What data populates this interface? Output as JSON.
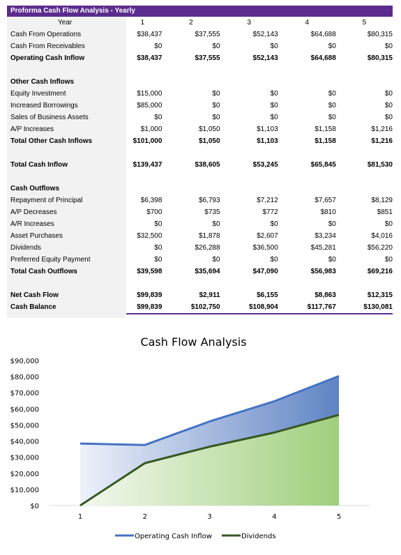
{
  "sheet": {
    "title": "Proforma Cash Flow Analysis - Yearly",
    "header": {
      "label": "Year",
      "cols": [
        "1",
        "2",
        "3",
        "4",
        "5"
      ]
    },
    "rows": [
      {
        "type": "data",
        "label": "Cash From Operations",
        "values": [
          "$38,437",
          "$37,555",
          "$52,143",
          "$64,688",
          "$80,315"
        ]
      },
      {
        "type": "data",
        "label": "Cash From Receivables",
        "values": [
          "$0",
          "$0",
          "$0",
          "$0",
          "$0"
        ]
      },
      {
        "type": "bold",
        "label": "Operating Cash Inflow",
        "values": [
          "$38,437",
          "$37,555",
          "$52,143",
          "$64,688",
          "$80,315"
        ]
      },
      {
        "type": "blank"
      },
      {
        "type": "section",
        "label": "Other Cash Inflows"
      },
      {
        "type": "data",
        "label": "Equity Investment",
        "values": [
          "$15,000",
          "$0",
          "$0",
          "$0",
          "$0"
        ]
      },
      {
        "type": "data",
        "label": "Increased Borrowings",
        "values": [
          "$85,000",
          "$0",
          "$0",
          "$0",
          "$0"
        ]
      },
      {
        "type": "data",
        "label": "Sales of Business Assets",
        "values": [
          "$0",
          "$0",
          "$0",
          "$0",
          "$0"
        ]
      },
      {
        "type": "data",
        "label": "A/P Increases",
        "values": [
          "$1,000",
          "$1,050",
          "$1,103",
          "$1,158",
          "$1,216"
        ]
      },
      {
        "type": "bold",
        "label": "Total Other Cash Inflows",
        "values": [
          "$101,000",
          "$1,050",
          "$1,103",
          "$1,158",
          "$1,216"
        ]
      },
      {
        "type": "blank"
      },
      {
        "type": "bold",
        "label": "Total Cash Inflow",
        "values": [
          "$139,437",
          "$38,605",
          "$53,245",
          "$65,845",
          "$81,530"
        ]
      },
      {
        "type": "blank"
      },
      {
        "type": "section",
        "label": "Cash Outflows"
      },
      {
        "type": "data",
        "label": "Repayment of Principal",
        "values": [
          "$6,398",
          "$6,793",
          "$7,212",
          "$7,657",
          "$8,129"
        ]
      },
      {
        "type": "data",
        "label": "A/P Decreases",
        "values": [
          "$700",
          "$735",
          "$772",
          "$810",
          "$851"
        ]
      },
      {
        "type": "data",
        "label": "A/R Increases",
        "values": [
          "$0",
          "$0",
          "$0",
          "$0",
          "$0"
        ]
      },
      {
        "type": "data",
        "label": "Asset Purchases",
        "values": [
          "$32,500",
          "$1,878",
          "$2,607",
          "$3,234",
          "$4,016"
        ]
      },
      {
        "type": "data",
        "label": "Dividends",
        "values": [
          "$0",
          "$26,288",
          "$36,500",
          "$45,281",
          "$56,220"
        ]
      },
      {
        "type": "data",
        "label": "Preferred Equity Payment",
        "values": [
          "$0",
          "$0",
          "$0",
          "$0",
          "$0"
        ]
      },
      {
        "type": "bold",
        "label": "Total Cash Outflows",
        "values": [
          "$39,598",
          "$35,694",
          "$47,090",
          "$56,983",
          "$69,216"
        ]
      },
      {
        "type": "blank"
      },
      {
        "type": "bold",
        "label": "Net Cash Flow",
        "values": [
          "$99,839",
          "$2,911",
          "$6,155",
          "$8,863",
          "$12,315"
        ]
      },
      {
        "type": "bold",
        "label": "Cash Balance",
        "values": [
          "$99,839",
          "$102,750",
          "$108,904",
          "$117,767",
          "$130,081"
        ]
      }
    ]
  },
  "chart_data": {
    "type": "area",
    "title": "Cash Flow Analysis",
    "x": [
      "1",
      "2",
      "3",
      "4",
      "5"
    ],
    "series": [
      {
        "name": "Operating Cash Inflow",
        "values": [
          38437,
          37555,
          52143,
          64688,
          80315
        ],
        "color": "#4472c4"
      },
      {
        "name": "Dividends",
        "values": [
          0,
          26288,
          36500,
          45281,
          56220
        ],
        "color": "#375623"
      }
    ],
    "ylim": [
      0,
      90000
    ],
    "yticks": [
      "$0",
      "$10,000",
      "$20,000",
      "$30,000",
      "$40,000",
      "$50,000",
      "$60,000",
      "$70,000",
      "$80,000",
      "$90,000"
    ],
    "legend": "bottom",
    "grid": false
  }
}
